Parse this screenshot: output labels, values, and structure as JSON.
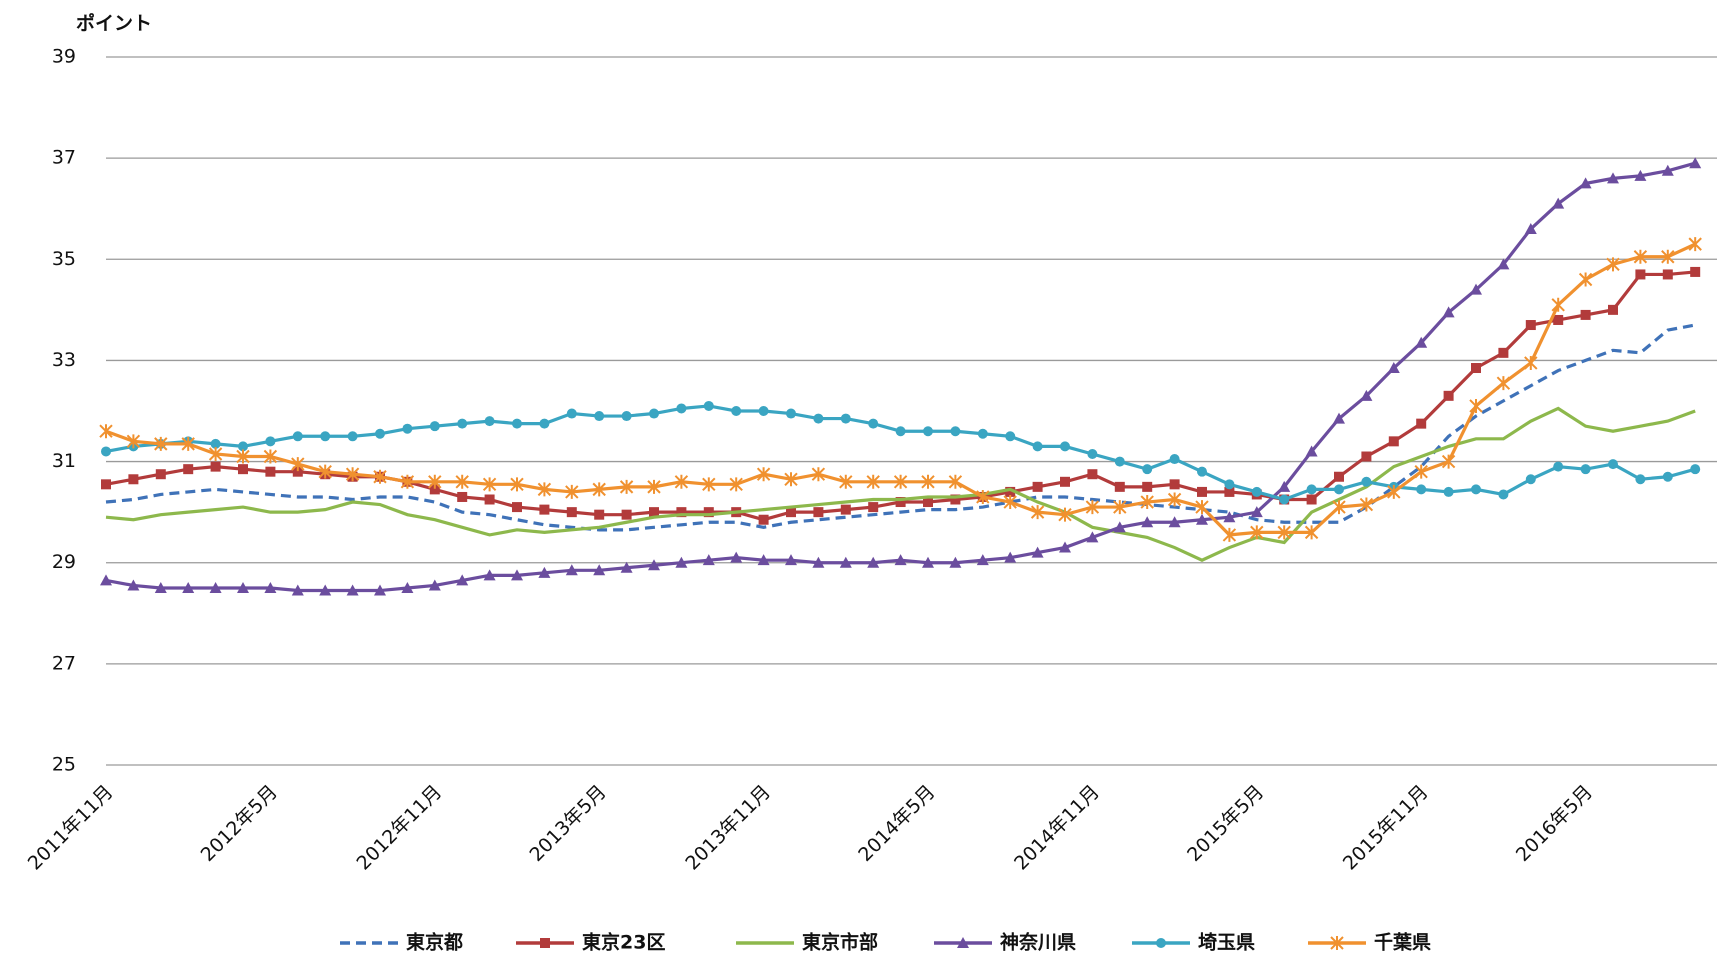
{
  "chart_data": {
    "type": "line",
    "ylabel": "ポイント",
    "categories": [
      "2011年11月",
      null,
      null,
      null,
      null,
      null,
      "2012年5月",
      null,
      null,
      null,
      null,
      null,
      "2012年11月",
      null,
      null,
      null,
      null,
      null,
      "2013年5月",
      null,
      null,
      null,
      null,
      null,
      "2013年11月",
      null,
      null,
      null,
      null,
      null,
      "2014年5月",
      null,
      null,
      null,
      null,
      null,
      "2014年11月",
      null,
      null,
      null,
      null,
      null,
      "2015年5月",
      null,
      null,
      null,
      null,
      null,
      "2015年11月",
      null,
      null,
      null,
      null,
      null,
      "2016年5月",
      null,
      null,
      null,
      null
    ],
    "ylim": [
      25,
      39
    ],
    "yticks": [
      25,
      27,
      29,
      31,
      33,
      35,
      37,
      39
    ],
    "grid": true,
    "series": [
      {
        "name": "東京都",
        "color": "#3f72b8",
        "linestyle": "dashed",
        "marker": "none",
        "values": [
          30.2,
          30.25,
          30.35,
          30.4,
          30.45,
          30.4,
          30.35,
          30.3,
          30.3,
          30.25,
          30.3,
          30.3,
          30.2,
          30.0,
          29.95,
          29.85,
          29.75,
          29.7,
          29.65,
          29.65,
          29.7,
          29.75,
          29.8,
          29.8,
          29.7,
          29.8,
          29.85,
          29.9,
          29.95,
          30.0,
          30.05,
          30.05,
          30.1,
          30.2,
          30.3,
          30.3,
          30.25,
          30.2,
          30.15,
          30.1,
          30.05,
          30.0,
          29.85,
          29.8,
          29.8,
          29.8,
          30.1,
          30.5,
          30.9,
          31.5,
          31.9,
          32.2,
          32.5,
          32.8,
          33.0,
          33.2,
          33.15,
          33.6,
          33.7
        ]
      },
      {
        "name": "東京23区",
        "color": "#b23b3b",
        "linestyle": "solid",
        "marker": "square",
        "values": [
          30.55,
          30.65,
          30.75,
          30.85,
          30.9,
          30.85,
          30.8,
          30.8,
          30.75,
          30.7,
          30.7,
          30.6,
          30.45,
          30.3,
          30.25,
          30.1,
          30.05,
          30.0,
          29.95,
          29.95,
          30.0,
          30.0,
          30.0,
          30.0,
          29.85,
          30.0,
          30.0,
          30.05,
          30.1,
          30.2,
          30.2,
          30.25,
          30.3,
          30.4,
          30.5,
          30.6,
          30.75,
          30.5,
          30.5,
          30.55,
          30.4,
          30.4,
          30.35,
          30.25,
          30.25,
          30.7,
          31.1,
          31.4,
          31.75,
          32.3,
          32.85,
          33.15,
          33.7,
          33.8,
          33.9,
          34.0,
          34.7,
          34.7,
          34.75
        ]
      },
      {
        "name": "東京市部",
        "color": "#8db84c",
        "linestyle": "solid",
        "marker": "none",
        "values": [
          29.9,
          29.85,
          29.95,
          30.0,
          30.05,
          30.1,
          30.0,
          30.0,
          30.05,
          30.2,
          30.15,
          29.95,
          29.85,
          29.7,
          29.55,
          29.65,
          29.6,
          29.65,
          29.7,
          29.8,
          29.9,
          29.95,
          29.95,
          30.0,
          30.05,
          30.1,
          30.15,
          30.2,
          30.25,
          30.25,
          30.3,
          30.3,
          30.35,
          30.45,
          30.2,
          30.0,
          29.7,
          29.6,
          29.5,
          29.3,
          29.05,
          29.3,
          29.5,
          29.4,
          30.0,
          30.25,
          30.5,
          30.9,
          31.1,
          31.3,
          31.45,
          31.45,
          31.8,
          32.05,
          31.7,
          31.6,
          31.7,
          31.8,
          32.0
        ]
      },
      {
        "name": "神奈川県",
        "color": "#6b4d9e",
        "linestyle": "solid",
        "marker": "triangle",
        "values": [
          28.65,
          28.55,
          28.5,
          28.5,
          28.5,
          28.5,
          28.5,
          28.45,
          28.45,
          28.45,
          28.45,
          28.5,
          28.55,
          28.65,
          28.75,
          28.75,
          28.8,
          28.85,
          28.85,
          28.9,
          28.95,
          29.0,
          29.05,
          29.1,
          29.05,
          29.05,
          29.0,
          29.0,
          29.0,
          29.05,
          29.0,
          29.0,
          29.05,
          29.1,
          29.2,
          29.3,
          29.5,
          29.7,
          29.8,
          29.8,
          29.85,
          29.9,
          30.0,
          30.5,
          31.2,
          31.85,
          32.3,
          32.85,
          33.35,
          33.95,
          34.4,
          34.9,
          35.6,
          36.1,
          36.5,
          36.6,
          36.65,
          36.75,
          36.9
        ]
      },
      {
        "name": "埼玉県",
        "color": "#3aa5c2",
        "linestyle": "solid",
        "marker": "circle",
        "values": [
          31.2,
          31.3,
          31.35,
          31.4,
          31.35,
          31.3,
          31.4,
          31.5,
          31.5,
          31.5,
          31.55,
          31.65,
          31.7,
          31.75,
          31.8,
          31.75,
          31.75,
          31.95,
          31.9,
          31.9,
          31.95,
          32.05,
          32.1,
          32.0,
          32.0,
          31.95,
          31.85,
          31.85,
          31.75,
          31.6,
          31.6,
          31.6,
          31.55,
          31.5,
          31.3,
          31.3,
          31.15,
          31.0,
          30.85,
          31.05,
          30.8,
          30.55,
          30.4,
          30.25,
          30.45,
          30.45,
          30.6,
          30.5,
          30.45,
          30.4,
          30.45,
          30.35,
          30.65,
          30.9,
          30.85,
          30.95,
          30.65,
          30.7,
          30.85
        ]
      },
      {
        "name": "千葉県",
        "color": "#f0912f",
        "linestyle": "solid",
        "marker": "x",
        "values": [
          31.6,
          31.4,
          31.35,
          31.35,
          31.15,
          31.1,
          31.1,
          30.95,
          30.8,
          30.75,
          30.7,
          30.6,
          30.6,
          30.6,
          30.55,
          30.55,
          30.45,
          30.4,
          30.45,
          30.5,
          30.5,
          30.6,
          30.55,
          30.55,
          30.75,
          30.65,
          30.75,
          30.6,
          30.6,
          30.6,
          30.6,
          30.6,
          30.3,
          30.2,
          30.0,
          29.95,
          30.1,
          30.1,
          30.2,
          30.25,
          30.1,
          29.55,
          29.6,
          29.6,
          29.6,
          30.1,
          30.15,
          30.4,
          30.8,
          31.0,
          32.1,
          32.55,
          32.95,
          34.1,
          34.6,
          34.9,
          35.05,
          35.05,
          35.3
        ]
      }
    ]
  }
}
